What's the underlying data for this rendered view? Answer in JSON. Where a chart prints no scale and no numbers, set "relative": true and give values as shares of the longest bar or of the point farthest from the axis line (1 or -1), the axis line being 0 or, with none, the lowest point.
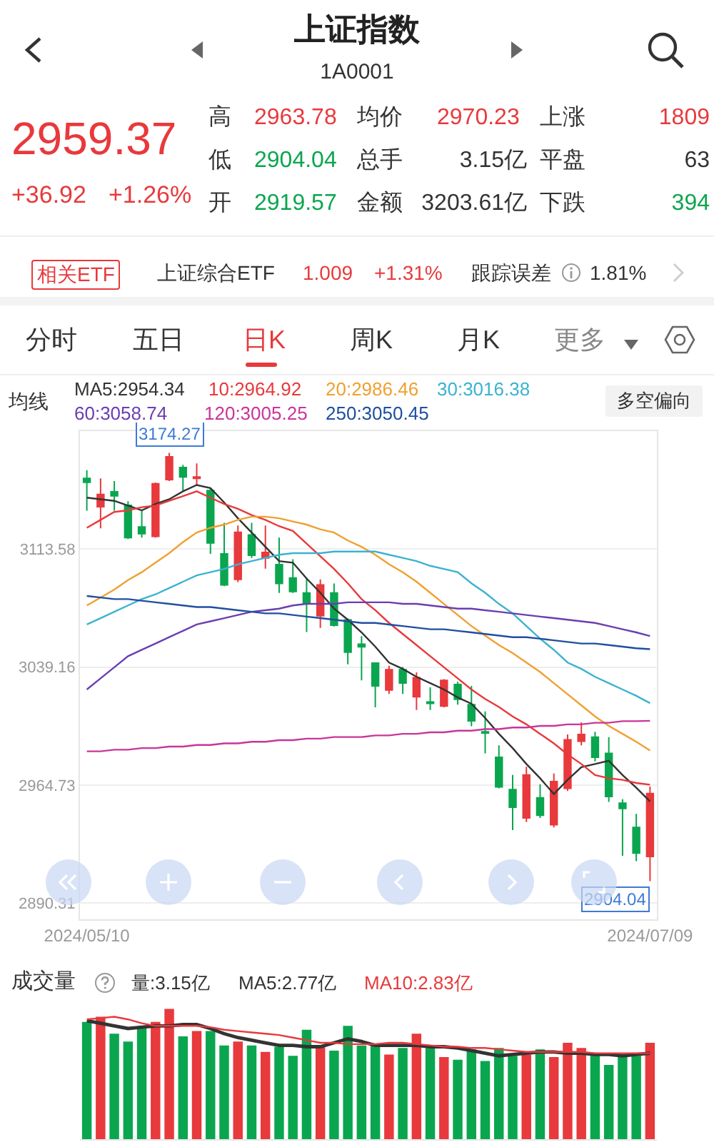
{
  "chart_data": [
    {
      "type": "other",
      "title": "上证指数",
      "subtitle": "1A0001",
      "annotations": [
        "2959.37",
        "+36.92",
        "+1.26%",
        "高",
        "2963.78",
        "均价",
        "2970.23",
        "上涨",
        "1809",
        "低",
        "2904.04",
        "总手",
        "3.15亿",
        "平盘",
        "63",
        "开",
        "2919.57",
        "金额",
        "3203.61亿",
        "下跌",
        "394",
        "相关ETF",
        "上证综合ETF",
        "1.009",
        "+1.31%",
        "跟踪误差",
        "1.81%",
        "分时",
        "五日",
        "日K",
        "周K",
        "月K",
        "更多"
      ]
    },
    {
      "type": "candlestick",
      "legend_title": "均线",
      "legend": "top",
      "grid": "y",
      "marker": "none",
      "line_style": "solid",
      "categories": [
        "2024/05/10",
        null,
        null,
        null,
        null,
        null,
        null,
        null,
        null,
        null,
        null,
        null,
        null,
        null,
        null,
        null,
        null,
        null,
        null,
        null,
        null,
        null,
        null,
        null,
        null,
        null,
        null,
        null,
        null,
        null,
        null,
        null,
        null,
        null,
        null,
        null,
        null,
        null,
        null,
        null,
        null,
        "2024/07/09"
      ],
      "ylim": [
        2880,
        3188
      ],
      "yticks": [
        2890.31,
        2964.73,
        3039.16,
        3113.58
      ],
      "colors": [
        "#0aa64f",
        "#e8393c",
        "#0aa64f",
        "#0aa64f",
        "#0aa64f",
        "#e8393c",
        "#e8393c",
        "#0aa64f",
        "#e8393c",
        "#0aa64f",
        "#0aa64f",
        "#e8393c",
        "#0aa64f",
        "#e8393c",
        "#0aa64f",
        "#0aa64f",
        "#0aa64f",
        "#e8393c",
        "#0aa64f",
        "#0aa64f",
        "#0aa64f",
        "#0aa64f",
        "#e8393c",
        "#0aa64f",
        "#e8393c",
        "#0aa64f",
        "#e8393c",
        "#0aa64f",
        "#0aa64f",
        "#0aa64f",
        "#0aa64f",
        "#0aa64f",
        "#e8393c",
        "#0aa64f",
        "#e8393c",
        "#e8393c",
        "#e8393c",
        "#0aa64f",
        "#0aa64f",
        "#0aa64f",
        "#0aa64f",
        "#e8393c"
      ],
      "ohlc": [
        [
          3158.2,
          3163.3,
          3137.8,
          3155.7
        ],
        [
          3140.3,
          3158.2,
          3126.7,
          3148.0
        ],
        [
          3149.7,
          3156.5,
          3137.8,
          3147.1
        ],
        [
          3141.2,
          3143.8,
          3119.9,
          3120.8
        ],
        [
          3127.6,
          3137.8,
          3120.8,
          3123.3
        ],
        [
          3121.6,
          3155.6,
          3120.8,
          3154.8
        ],
        [
          3157.4,
          3174.27,
          3156.5,
          3171.8
        ],
        [
          3165.0,
          3166.7,
          3149.7,
          3159.1
        ],
        [
          3158.2,
          3167.6,
          3153.9,
          3159.1
        ],
        [
          3150.5,
          3152.3,
          3110.6,
          3117.4
        ],
        [
          3110.6,
          3130.1,
          3090.2,
          3091.0
        ],
        [
          3094.4,
          3128.4,
          3092.7,
          3124.2
        ],
        [
          3122.5,
          3130.1,
          3108.0,
          3109.7
        ],
        [
          3108.0,
          3128.4,
          3101.2,
          3111.4
        ],
        [
          3103.8,
          3120.8,
          3085.9,
          3091.9
        ],
        [
          3095.3,
          3107.2,
          3085.9,
          3086.8
        ],
        [
          3085.9,
          3095.3,
          3061.3,
          3079.1
        ],
        [
          3071.5,
          3094.4,
          3063.8,
          3091.0
        ],
        [
          3085.9,
          3091.9,
          3064.7,
          3065.5
        ],
        [
          3068.9,
          3069.8,
          3040.9,
          3048.5
        ],
        [
          3053.6,
          3058.7,
          3030.7,
          3051.9
        ],
        [
          3041.7,
          3041.7,
          3013.7,
          3027.3
        ],
        [
          3024.7,
          3040.0,
          3022.2,
          3037.5
        ],
        [
          3037.5,
          3039.2,
          3022.2,
          3029.0
        ],
        [
          3020.4,
          3035.8,
          3012.0,
          3032.4
        ],
        [
          3017.1,
          3026.4,
          3012.0,
          3016.2
        ],
        [
          3014.5,
          3031.5,
          3013.7,
          3030.7
        ],
        [
          3028.1,
          3029.8,
          3015.4,
          3018.8
        ],
        [
          3015.4,
          3027.3,
          3001.8,
          3005.2
        ],
        [
          2998.3,
          3011.1,
          2984.7,
          2997.5
        ],
        [
          2982.2,
          2989.8,
          2962.6,
          2963.5
        ],
        [
          2961.8,
          2971.1,
          2936.3,
          2950.7
        ],
        [
          2943.9,
          2976.2,
          2941.4,
          2971.1
        ],
        [
          2956.7,
          2965.2,
          2943.9,
          2945.6
        ],
        [
          2939.7,
          2972.0,
          2938.0,
          2966.9
        ],
        [
          2962.6,
          2996.6,
          2960.9,
          2993.2
        ],
        [
          2992.4,
          3004.3,
          2989.8,
          2996.6
        ],
        [
          2994.9,
          2998.3,
          2979.6,
          2982.2
        ],
        [
          2984.7,
          2994.9,
          2954.1,
          2957.5
        ],
        [
          2953.3,
          2955.8,
          2920.1,
          2949.9
        ],
        [
          2938.0,
          2946.5,
          2916.7,
          2921.8
        ],
        [
          2919.57,
          2963.78,
          2904.04,
          2959.37
        ]
      ],
      "series": [
        {
          "type": "line",
          "name": "MA5:2954.34",
          "color": "#333333",
          "values": [
            3146,
            3145,
            3144,
            3141,
            3138,
            3142,
            3145,
            3150,
            3154,
            3152,
            3143,
            3133,
            3124,
            3115,
            3106,
            3105,
            3095,
            3086,
            3076,
            3069,
            3061,
            3052,
            3042,
            3038,
            3033,
            3029,
            3025,
            3020,
            3016,
            3007,
            2997,
            2988,
            2978,
            2969,
            2959,
            2968,
            2976,
            2978,
            2980,
            2971,
            2963,
            2954.34
          ]
        },
        {
          "type": "line",
          "name": "10:2964.92",
          "color": "#e8393c",
          "values": [
            3127,
            3132,
            3137,
            3138,
            3140,
            3141,
            3144,
            3147,
            3150,
            3146,
            3142,
            3139,
            3135,
            3132,
            3128,
            3125,
            3117,
            3109,
            3101,
            3092,
            3082,
            3075,
            3067,
            3060,
            3053,
            3046,
            3039,
            3032,
            3025,
            3019,
            3014,
            3008,
            3003,
            2997,
            2991,
            2984,
            2978,
            2971,
            2969,
            2968,
            2966,
            2964.92
          ]
        },
        {
          "type": "line",
          "name": "20:2986.46",
          "color": "#f0a030",
          "values": [
            3078,
            3083,
            3088,
            3094,
            3099,
            3105,
            3111,
            3118,
            3124,
            3127,
            3129,
            3132,
            3134,
            3134,
            3133,
            3131,
            3129,
            3126,
            3124,
            3119,
            3115,
            3110,
            3104,
            3099,
            3093,
            3086,
            3079,
            3072,
            3065,
            3059,
            3053,
            3048,
            3042,
            3036,
            3029,
            3022,
            3015,
            3008,
            3002,
            2997,
            2992,
            2986.46
          ]
        },
        {
          "type": "line",
          "name": "30:3016.38",
          "color": "#3bb3d0",
          "values": [
            3066,
            3070,
            3074,
            3078,
            3082,
            3085,
            3089,
            3093,
            3097,
            3099,
            3101,
            3104,
            3106,
            3108,
            3110,
            3111,
            3111,
            3111,
            3112,
            3112,
            3112,
            3112,
            3110,
            3108,
            3106,
            3103,
            3101,
            3099,
            3092,
            3086,
            3079,
            3073,
            3065,
            3057,
            3050,
            3042,
            3038,
            3033,
            3029,
            3025,
            3021,
            3016.38
          ]
        },
        {
          "type": "line",
          "name": "60:3058.74",
          "color": "#6a3fb0",
          "values": [
            3025,
            3032,
            3039,
            3046,
            3050,
            3054,
            3058,
            3062,
            3066,
            3068,
            3070,
            3072,
            3074,
            3075,
            3076,
            3078,
            3079,
            3079,
            3079,
            3080,
            3080,
            3080,
            3080,
            3079,
            3079,
            3078,
            3077,
            3076,
            3076,
            3075,
            3074,
            3073,
            3072,
            3071,
            3070,
            3069,
            3068,
            3067,
            3065,
            3063,
            3061,
            3058.74
          ]
        },
        {
          "type": "line",
          "name": "120:3005.25",
          "color": "#c8369a",
          "values": [
            2986,
            2986,
            2987,
            2987,
            2988,
            2988,
            2989,
            2989,
            2990,
            2990,
            2991,
            2991,
            2992,
            2992,
            2993,
            2993,
            2994,
            2994,
            2995,
            2995,
            2995,
            2996,
            2996,
            2997,
            2997,
            2998,
            2998,
            2999,
            2999,
            3000,
            3000,
            3001,
            3001,
            3002,
            3002,
            3003,
            3003,
            3004,
            3004,
            3005,
            3005,
            3005.25
          ]
        },
        {
          "type": "line",
          "name": "250:3050.45",
          "color": "#1f4fa0",
          "values": [
            3084,
            3083,
            3082,
            3082,
            3081,
            3080,
            3079,
            3078,
            3077,
            3077,
            3076,
            3075,
            3074,
            3073,
            3073,
            3072,
            3071,
            3070,
            3069,
            3068,
            3067,
            3067,
            3066,
            3065,
            3064,
            3063,
            3063,
            3062,
            3061,
            3060,
            3059,
            3058,
            3058,
            3057,
            3056,
            3055,
            3054,
            3054,
            3053,
            3052,
            3051,
            3050.45
          ]
        }
      ],
      "annotations": [
        "3174.27",
        "2904.04",
        "多空偏向"
      ]
    },
    {
      "type": "bar",
      "relative": true,
      "title": "成交量",
      "categories": [
        null,
        null,
        null,
        null,
        null,
        null,
        null,
        null,
        null,
        null,
        null,
        null,
        null,
        null,
        null,
        null,
        null,
        null,
        null,
        null,
        null,
        null,
        null,
        null,
        null,
        null,
        null,
        null,
        null,
        null,
        null,
        null,
        null,
        null,
        null,
        null,
        null,
        null,
        null,
        null,
        null,
        null
      ],
      "colors": [
        "#0aa64f",
        "#e8393c",
        "#0aa64f",
        "#0aa64f",
        "#0aa64f",
        "#e8393c",
        "#e8393c",
        "#0aa64f",
        "#e8393c",
        "#0aa64f",
        "#0aa64f",
        "#e8393c",
        "#0aa64f",
        "#e8393c",
        "#0aa64f",
        "#0aa64f",
        "#0aa64f",
        "#e8393c",
        "#0aa64f",
        "#0aa64f",
        "#0aa64f",
        "#0aa64f",
        "#e8393c",
        "#0aa64f",
        "#e8393c",
        "#0aa64f",
        "#e8393c",
        "#0aa64f",
        "#0aa64f",
        "#0aa64f",
        "#0aa64f",
        "#0aa64f",
        "#e8393c",
        "#0aa64f",
        "#e8393c",
        "#e8393c",
        "#e8393c",
        "#0aa64f",
        "#0aa64f",
        "#0aa64f",
        "#0aa64f",
        "#e8393c"
      ],
      "values": [
        0.9,
        0.94,
        0.81,
        0.75,
        0.85,
        0.9,
        1,
        0.79,
        0.83,
        0.83,
        0.72,
        0.75,
        0.72,
        0.67,
        0.71,
        0.64,
        0.84,
        0.72,
        0.68,
        0.87,
        0.72,
        0.72,
        0.65,
        0.7,
        0.81,
        0.7,
        0.63,
        0.61,
        0.69,
        0.6,
        0.7,
        0.64,
        0.65,
        0.69,
        0.63,
        0.74,
        0.7,
        0.66,
        0.57,
        0.64,
        0.64,
        0.74
      ],
      "series": [
        {
          "type": "line",
          "name": "MA5:2.77亿",
          "color": "#333333",
          "values": [
            0.91,
            0.89,
            0.87,
            0.85,
            0.86,
            0.87,
            0.87,
            0.88,
            0.88,
            0.85,
            0.81,
            0.78,
            0.76,
            0.74,
            0.72,
            0.72,
            0.71,
            0.71,
            0.74,
            0.77,
            0.75,
            0.72,
            0.72,
            0.72,
            0.72,
            0.71,
            0.71,
            0.7,
            0.68,
            0.66,
            0.64,
            0.65,
            0.66,
            0.67,
            0.67,
            0.66,
            0.66,
            0.65,
            0.65,
            0.64,
            0.65,
            0.66
          ]
        },
        {
          "type": "line",
          "name": "MA10:2.83亿",
          "color": "#e8393c",
          "values": [
            0.92,
            0.93,
            0.94,
            0.92,
            0.89,
            0.87,
            0.87,
            0.87,
            0.87,
            0.86,
            0.84,
            0.83,
            0.82,
            0.81,
            0.8,
            0.78,
            0.76,
            0.74,
            0.74,
            0.73,
            0.73,
            0.73,
            0.74,
            0.74,
            0.73,
            0.72,
            0.71,
            0.71,
            0.7,
            0.7,
            0.69,
            0.68,
            0.67,
            0.67,
            0.67,
            0.67,
            0.67,
            0.66,
            0.66,
            0.66,
            0.66,
            0.66
          ]
        }
      ],
      "annotations": [
        "量:3.15亿"
      ]
    }
  ]
}
